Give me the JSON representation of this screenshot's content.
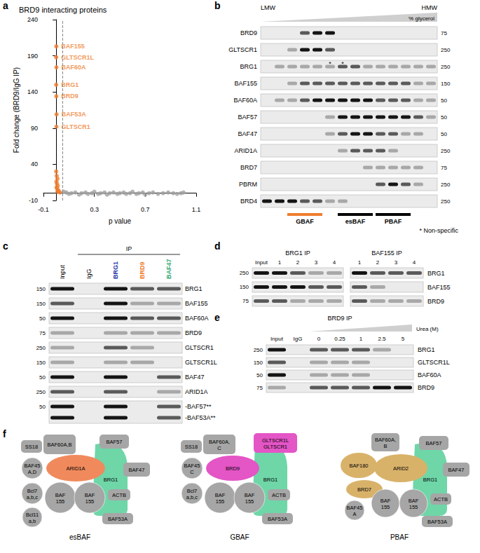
{
  "chart_data": {
    "panel": "a",
    "type": "scatter",
    "title": "BRD9 interacting proteins",
    "x_label": "p value",
    "y_label": "Fold change (BRD9/IgG IP)",
    "xlim": [
      -0.1,
      1.1
    ],
    "xticks": [
      -0.1,
      0.3,
      0.7,
      1.1
    ],
    "ylim": [
      -10,
      240
    ],
    "yticks": [
      -10,
      40,
      90,
      140,
      190,
      240
    ],
    "grid": false,
    "threshold_x": 0.05,
    "series": [
      {
        "color": "#a0a0a0",
        "x": [
          0.06,
          0.08,
          0.1,
          0.12,
          0.15,
          0.18,
          0.2,
          0.23,
          0.25,
          0.28,
          0.3,
          0.33,
          0.35,
          0.38,
          0.4,
          0.42,
          0.45,
          0.48,
          0.5,
          0.53,
          0.55,
          0.58,
          0.6,
          0.63,
          0.65,
          0.68,
          0.7,
          0.73,
          0.76,
          0.8,
          0.84,
          0.88,
          0.92,
          0.95,
          0.98,
          1.0
        ],
        "values": [
          2,
          1,
          -1,
          0,
          1,
          -2,
          0,
          1,
          -1,
          0,
          2,
          -1,
          0,
          1,
          -2,
          0,
          1,
          -1,
          0,
          1,
          -1,
          0,
          2,
          -1,
          0,
          1,
          -2,
          0,
          1,
          -1,
          0,
          1,
          0,
          -1,
          0,
          1
        ]
      },
      {
        "color": "#ef7d2e",
        "x": [
          0.001,
          0.0,
          0.002,
          0.0,
          0.001,
          0.003,
          0.002,
          0.0,
          0.004,
          0.01,
          0.002,
          0.006,
          0.012,
          0.003,
          0.008,
          0.015,
          0.02,
          0.01,
          0.03
        ],
        "values": [
          203,
          188,
          174,
          150,
          134,
          109,
          92,
          30,
          24,
          20,
          16,
          13,
          10,
          8,
          6,
          4,
          3,
          2,
          1
        ],
        "labels": [
          "BAF155",
          "GLTSCR1L",
          "BAF60A",
          "BRG1",
          "BRD9",
          "BAF53A",
          "GLTSCR1",
          null,
          null,
          null,
          null,
          null,
          null,
          null,
          null,
          null,
          null,
          null,
          null
        ]
      }
    ]
  },
  "panels": {
    "b": {
      "letter": "b",
      "left_label": "LMW",
      "right_label": "HMW",
      "gradient_label": "% glycerol",
      "lanes": 14,
      "rows": [
        {
          "label": "BRD9",
          "mw": 75,
          "intensity": [
            0,
            0,
            0,
            2,
            3,
            3,
            0,
            0,
            0,
            0,
            0,
            0,
            0,
            0
          ]
        },
        {
          "label": "GLTSCR1",
          "mw": 250,
          "intensity": [
            0,
            0,
            1,
            3,
            3,
            2,
            0,
            0,
            0,
            0,
            0,
            0,
            0,
            0
          ]
        },
        {
          "label": "BRG1",
          "mw": 250,
          "intensity": [
            0,
            1,
            1,
            1,
            1,
            1,
            2,
            2,
            1,
            1,
            1,
            1,
            1,
            1
          ],
          "marks": {
            "text": "*",
            "lanes": [
              6,
              7
            ]
          }
        },
        {
          "label": "BAF155",
          "mw": 150,
          "intensity": [
            0,
            0,
            1,
            2,
            2,
            2,
            2,
            2,
            2,
            2,
            2,
            2,
            1,
            1
          ]
        },
        {
          "label": "BAF60A",
          "mw": 50,
          "intensity": [
            0,
            1,
            1,
            2,
            3,
            3,
            3,
            3,
            3,
            2,
            2,
            2,
            1,
            1
          ]
        },
        {
          "label": "BAF57",
          "mw": 50,
          "intensity": [
            0,
            0,
            0,
            0,
            0,
            1,
            3,
            3,
            3,
            3,
            3,
            3,
            2,
            1
          ]
        },
        {
          "label": "BAF47",
          "mw": 50,
          "intensity": [
            0,
            0,
            0,
            0,
            0,
            1,
            2,
            3,
            3,
            2,
            2,
            1,
            1,
            0
          ]
        },
        {
          "label": "ARID1A",
          "mw": 250,
          "intensity": [
            0,
            0,
            0,
            0,
            0,
            0,
            1,
            2,
            2,
            2,
            1,
            0,
            0,
            0
          ]
        },
        {
          "label": "BRD7",
          "mw": 75,
          "intensity": [
            0,
            0,
            0,
            0,
            0,
            0,
            0,
            0,
            1,
            1,
            1,
            1,
            1,
            0
          ]
        },
        {
          "label": "PBRM",
          "mw": 250,
          "intensity": [
            0,
            0,
            0,
            0,
            0,
            0,
            0,
            0,
            0,
            2,
            3,
            2,
            1,
            0
          ]
        },
        {
          "label": "BRD4",
          "mw": 250,
          "intensity": [
            3,
            3,
            3,
            2,
            2,
            1,
            1,
            0,
            0,
            0,
            0,
            0,
            0,
            0
          ]
        }
      ],
      "fractions": [
        {
          "label": "GBAF",
          "color": "#ef7d2e",
          "lanes": [
            3,
            5
          ]
        },
        {
          "label": "esBAF",
          "color": "#000000",
          "lanes": [
            7,
            9
          ]
        },
        {
          "label": "PBAF",
          "color": "#000000",
          "lanes": [
            10,
            12
          ]
        }
      ],
      "note": "* Non-specific"
    },
    "c": {
      "letter": "c",
      "header": "IP",
      "columns": [
        "Input",
        "IgG",
        "BRG1",
        "BRD9",
        "BAF47"
      ],
      "colors": [
        "#000000",
        "#000000",
        "#2b3aa8",
        "#ef7d2e",
        "#2fa874"
      ],
      "rows": [
        {
          "label": "BRG1",
          "mw": 150,
          "intensity": [
            3,
            0,
            3,
            2,
            2
          ]
        },
        {
          "label": "BAF155",
          "mw": 150,
          "intensity": [
            2,
            0,
            3,
            1,
            1
          ]
        },
        {
          "label": "BAF60A",
          "mw": 50,
          "intensity": [
            3,
            0,
            3,
            2,
            2
          ]
        },
        {
          "label": "BRD9",
          "mw": 75,
          "intensity": [
            1,
            0,
            1,
            1,
            1
          ]
        },
        {
          "label": "GLTSCR1",
          "mw": 250,
          "intensity": [
            1,
            0,
            2,
            1,
            0
          ]
        },
        {
          "label": "GLTSCR1L",
          "mw": 150,
          "intensity": [
            1,
            0,
            1,
            1,
            0
          ]
        },
        {
          "label": "BAF47",
          "mw": 50,
          "intensity": [
            3,
            0,
            3,
            0,
            2
          ]
        },
        {
          "label": "ARID1A",
          "mw": 250,
          "intensity": [
            2,
            0,
            2,
            0,
            1
          ]
        },
        {
          "labels": [
            "-BAF57**",
            "-BAF53A**"
          ],
          "mw": 50,
          "intensities": [
            [
              3,
              0,
              3,
              0,
              2
            ],
            [
              3,
              0,
              3,
              0,
              2
            ]
          ]
        }
      ]
    },
    "d": {
      "letter": "d",
      "groups": [
        {
          "title": "BRG1 IP",
          "lanes": [
            "Input",
            "1",
            "2",
            "3",
            "4"
          ]
        },
        {
          "title": "BAF155 IP",
          "lanes": [
            "1",
            "2",
            "3",
            "4"
          ]
        }
      ],
      "rows": [
        {
          "label": "BRG1",
          "mw": 250,
          "intensity": [
            [
              3,
              3,
              2,
              1,
              1
            ],
            [
              3,
              2,
              2,
              2
            ]
          ]
        },
        {
          "label": "BAF155",
          "mw": 150,
          "intensity": [
            [
              3,
              3,
              3,
              2,
              2
            ],
            [
              2,
              1,
              0,
              0
            ]
          ]
        },
        {
          "label": "BRD9",
          "mw": 75,
          "intensity": [
            [
              2,
              2,
              1,
              1,
              1
            ],
            [
              2,
              1,
              1,
              1
            ]
          ]
        }
      ]
    },
    "e": {
      "letter": "e",
      "title": "BRD9 IP",
      "gradient_label": "Urea (M)",
      "lanes": [
        "Input",
        "IgG",
        "0",
        "0.25",
        "1",
        "2.5",
        "5"
      ],
      "rows": [
        {
          "label": "BRG1",
          "mw": 250,
          "intensity": [
            3,
            0,
            2,
            2,
            2,
            1,
            0
          ]
        },
        {
          "label": "GLTSCR1L",
          "mw": 150,
          "intensity": [
            2,
            0,
            1,
            1,
            1,
            0,
            0
          ]
        },
        {
          "label": "BAF60A",
          "mw": 50,
          "intensity": [
            3,
            0,
            1,
            1,
            1,
            0,
            0
          ]
        },
        {
          "label": "BRD9",
          "mw": 75,
          "intensity": [
            1,
            0,
            2,
            2,
            2,
            3,
            3
          ]
        }
      ]
    },
    "f": {
      "letter": "f",
      "complexes": [
        {
          "name": "esBAF",
          "subunits": [
            {
              "label": "SS18",
              "color": "#a6a6a6"
            },
            {
              "label": "BAF60A,B",
              "color": "#a6a6a6"
            },
            {
              "label": "BAF57",
              "color": "#a6a6a6"
            },
            {
              "label": "BAF45\nA,D",
              "color": "#a6a6a6"
            },
            {
              "label": "ARID1A",
              "color": "#f08a5d"
            },
            {
              "label": "BRG1",
              "color": "#6fd6a8"
            },
            {
              "label": "BAF47",
              "color": "#a6a6a6"
            },
            {
              "label": "Bcl7\na,b,c",
              "color": "#a6a6a6"
            },
            {
              "label": "BAF\n155",
              "color": "#a6a6a6"
            },
            {
              "label": "BAF\n155",
              "color": "#a6a6a6"
            },
            {
              "label": "ACTB",
              "color": "#a6a6a6"
            },
            {
              "label": "Bcl11\na,b",
              "color": "#a6a6a6"
            },
            {
              "label": "BAF53A",
              "color": "#a6a6a6"
            }
          ]
        },
        {
          "name": "GBAF",
          "subunits": [
            {
              "label": "SS18",
              "color": "#a6a6a6"
            },
            {
              "label": "BAF60A,\nC",
              "color": "#a6a6a6"
            },
            {
              "label": "GLTSCR1L\nGLTSCR1",
              "color": "#e455c6"
            },
            {
              "label": "BAF45\nC",
              "color": "#a6a6a6"
            },
            {
              "label": "BRD9",
              "color": "#e455c6"
            },
            {
              "label": "BRG1",
              "color": "#6fd6a8"
            },
            {
              "label": "Bcl7\na,b,c",
              "color": "#a6a6a6"
            },
            {
              "label": "BAF\n155",
              "color": "#a6a6a6"
            },
            {
              "label": "BAF\n155",
              "color": "#a6a6a6"
            },
            {
              "label": "ACTB",
              "color": "#a6a6a6"
            },
            {
              "label": "BAF53A",
              "color": "#a6a6a6"
            }
          ]
        },
        {
          "name": "PBAF",
          "subunits": [
            {
              "label": "BAF60A,\nB",
              "color": "#a6a6a6"
            },
            {
              "label": "BAF180",
              "color": "#d9b26a"
            },
            {
              "label": "ARID2",
              "color": "#d9b26a"
            },
            {
              "label": "BRD7",
              "color": "#d9b26a"
            },
            {
              "label": "BAF57",
              "color": "#a6a6a6"
            },
            {
              "label": "BAF47",
              "color": "#a6a6a6"
            },
            {
              "label": "BAF45\nA",
              "color": "#a6a6a6"
            },
            {
              "label": "BAF\n155",
              "color": "#a6a6a6"
            },
            {
              "label": "BAF\n155",
              "color": "#a6a6a6"
            },
            {
              "label": "BRG1",
              "color": "#6fd6a8"
            },
            {
              "label": "ACTB",
              "color": "#a6a6a6"
            },
            {
              "label": "BAF53A",
              "color": "#a6a6a6"
            }
          ]
        }
      ]
    }
  }
}
